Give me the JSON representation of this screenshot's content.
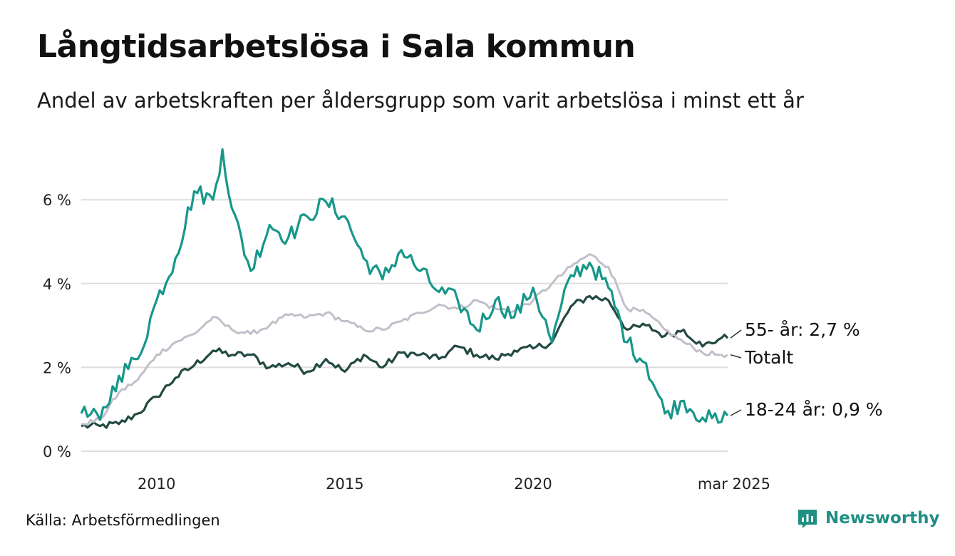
{
  "header": {
    "title": "Långtidsarbetslösa i Sala kommun",
    "subtitle": "Andel av arbetskraften per åldersgrupp som varit arbetslösa i minst ett år"
  },
  "footer": {
    "source": "Källa: Arbetsförmedlingen",
    "brand": "Newsworthy",
    "brand_icon": "newsworthy-logo-icon"
  },
  "colors": {
    "youth": "#17978a",
    "older": "#234a42",
    "total": "#c2bfca",
    "grid": "#dddddd",
    "brand": "#1f8f84"
  },
  "chart_data": {
    "type": "line",
    "title": "Långtidsarbetslösa i Sala kommun",
    "xlabel": "",
    "ylabel": "",
    "x_range": [
      "2008-01",
      "2025-03"
    ],
    "ylim": [
      0,
      7.5
    ],
    "y_ticks": [
      0,
      2,
      4,
      6
    ],
    "y_tick_labels": [
      "0 %",
      "2 %",
      "4 %",
      "6 %"
    ],
    "x_ticks": [
      "2010-01",
      "2015-01",
      "2020-01",
      "2025-03"
    ],
    "x_tick_labels": [
      "2010",
      "2015",
      "2020",
      "mar 2025"
    ],
    "grid": true,
    "legend": "direct-labels-right",
    "series": [
      {
        "key": "older",
        "name": "55- år",
        "end_label": "55- år: 2,7 %",
        "points": [
          [
            "2008-01",
            0.6
          ],
          [
            "2008-07",
            0.6
          ],
          [
            "2009-01",
            0.65
          ],
          [
            "2009-07",
            0.9
          ],
          [
            "2010-01",
            1.3
          ],
          [
            "2010-07",
            1.75
          ],
          [
            "2011-01",
            2.05
          ],
          [
            "2011-07",
            2.4
          ],
          [
            "2012-01",
            2.3
          ],
          [
            "2012-07",
            2.3
          ],
          [
            "2013-01",
            2.0
          ],
          [
            "2013-07",
            2.1
          ],
          [
            "2014-01",
            1.9
          ],
          [
            "2014-07",
            2.2
          ],
          [
            "2015-01",
            1.9
          ],
          [
            "2015-07",
            2.3
          ],
          [
            "2016-01",
            2.0
          ],
          [
            "2016-07",
            2.35
          ],
          [
            "2017-01",
            2.3
          ],
          [
            "2017-07",
            2.2
          ],
          [
            "2018-01",
            2.5
          ],
          [
            "2018-07",
            2.3
          ],
          [
            "2019-01",
            2.2
          ],
          [
            "2019-07",
            2.4
          ],
          [
            "2020-01",
            2.45
          ],
          [
            "2020-07",
            2.6
          ],
          [
            "2021-01",
            3.45
          ],
          [
            "2021-07",
            3.7
          ],
          [
            "2022-01",
            3.6
          ],
          [
            "2022-07",
            2.9
          ],
          [
            "2023-01",
            3.0
          ],
          [
            "2023-07",
            2.75
          ],
          [
            "2024-01",
            2.9
          ],
          [
            "2024-07",
            2.5
          ],
          [
            "2025-01",
            2.7
          ],
          [
            "2025-03",
            2.7
          ]
        ]
      },
      {
        "key": "total",
        "name": "Totalt",
        "end_label": "Totalt",
        "points": [
          [
            "2008-01",
            0.65
          ],
          [
            "2008-07",
            0.75
          ],
          [
            "2009-01",
            1.4
          ],
          [
            "2009-07",
            1.7
          ],
          [
            "2010-01",
            2.3
          ],
          [
            "2010-07",
            2.6
          ],
          [
            "2011-01",
            2.8
          ],
          [
            "2011-07",
            3.2
          ],
          [
            "2012-01",
            2.9
          ],
          [
            "2012-07",
            2.8
          ],
          [
            "2013-01",
            3.0
          ],
          [
            "2013-07",
            3.25
          ],
          [
            "2014-01",
            3.2
          ],
          [
            "2014-07",
            3.3
          ],
          [
            "2015-01",
            3.1
          ],
          [
            "2015-07",
            2.9
          ],
          [
            "2016-01",
            2.9
          ],
          [
            "2016-07",
            3.1
          ],
          [
            "2017-01",
            3.3
          ],
          [
            "2017-07",
            3.5
          ],
          [
            "2018-01",
            3.4
          ],
          [
            "2018-07",
            3.6
          ],
          [
            "2019-01",
            3.4
          ],
          [
            "2019-07",
            3.35
          ],
          [
            "2020-01",
            3.6
          ],
          [
            "2020-07",
            4.0
          ],
          [
            "2021-01",
            4.4
          ],
          [
            "2021-07",
            4.7
          ],
          [
            "2022-01",
            4.4
          ],
          [
            "2022-07",
            3.4
          ],
          [
            "2023-01",
            3.3
          ],
          [
            "2023-07",
            2.9
          ],
          [
            "2024-01",
            2.6
          ],
          [
            "2024-07",
            2.35
          ],
          [
            "2025-01",
            2.3
          ],
          [
            "2025-03",
            2.3
          ]
        ]
      },
      {
        "key": "youth",
        "name": "18-24 år",
        "end_label": "18-24 år: 0,9 %",
        "points": [
          [
            "2008-01",
            0.9
          ],
          [
            "2008-07",
            0.75
          ],
          [
            "2009-01",
            1.8
          ],
          [
            "2009-07",
            2.2
          ],
          [
            "2010-01",
            3.6
          ],
          [
            "2010-07",
            4.6
          ],
          [
            "2011-01",
            6.2
          ],
          [
            "2011-07",
            6.0
          ],
          [
            "2011-10",
            7.2
          ],
          [
            "2012-01",
            5.8
          ],
          [
            "2012-07",
            4.3
          ],
          [
            "2013-01",
            5.4
          ],
          [
            "2013-07",
            5.1
          ],
          [
            "2014-01",
            5.6
          ],
          [
            "2014-07",
            5.95
          ],
          [
            "2015-01",
            5.6
          ],
          [
            "2015-07",
            4.6
          ],
          [
            "2016-01",
            4.1
          ],
          [
            "2016-07",
            4.8
          ],
          [
            "2017-01",
            4.3
          ],
          [
            "2017-07",
            3.8
          ],
          [
            "2018-01",
            3.6
          ],
          [
            "2018-07",
            2.9
          ],
          [
            "2019-01",
            3.6
          ],
          [
            "2019-07",
            3.2
          ],
          [
            "2020-01",
            3.9
          ],
          [
            "2020-07",
            2.6
          ],
          [
            "2021-01",
            4.2
          ],
          [
            "2021-07",
            4.5
          ],
          [
            "2022-01",
            3.9
          ],
          [
            "2022-07",
            2.6
          ],
          [
            "2023-01",
            2.1
          ],
          [
            "2023-07",
            0.9
          ],
          [
            "2024-01",
            1.2
          ],
          [
            "2024-07",
            0.8
          ],
          [
            "2025-01",
            0.7
          ],
          [
            "2025-03",
            0.85
          ]
        ]
      }
    ]
  }
}
